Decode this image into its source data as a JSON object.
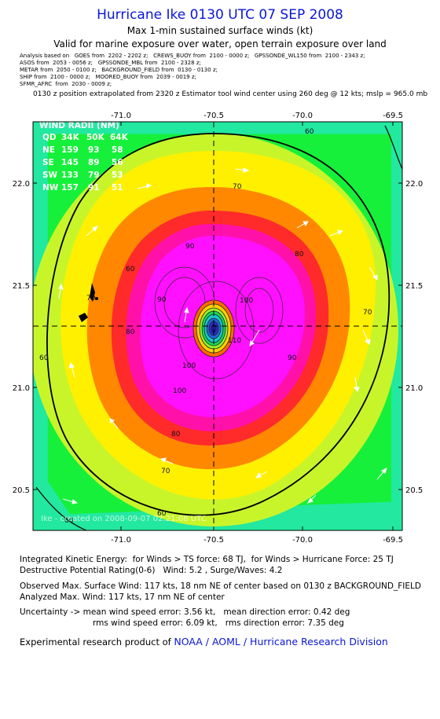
{
  "header": {
    "title": "Hurricane Ike 0130 UTC 07 SEP 2008",
    "subtitle1": "Max 1-min sustained surface winds (kt)",
    "subtitle2": "Valid for marine exposure over water, open terrain exposure over land"
  },
  "analysis_lines": [
    "Analysis based on   GOES from  2202 - 2202 z;   CREWS_BUOY from  2100 - 0000 z;   GPSSONDE_WL150 from  2100 - 2343 z;",
    "ASOS from  2053 - 0056 z;   GPSSONDE_MBL from  2100 - 2328 z;",
    "METAR from  2050 - 0100 z;   BACKGROUND_FIELD from  0130 - 0130 z;",
    "SHIP from  2100 - 0000 z;   MOORED_BUOY from  2039 - 0019 z;",
    "SFMR_AFRC  from  2030 - 0009 z;"
  ],
  "position_note": "0130 z position extrapolated from 2320 z Estimator tool wind center using 260 deg @ 12 kts; mslp = 965.0 mb",
  "map": {
    "x_ticks": [
      "-71.0",
      "-70.5",
      "-70.0",
      "-69.5"
    ],
    "y_ticks": [
      "22.0",
      "21.5",
      "21.0",
      "20.5"
    ],
    "x_range": [
      -71.44,
      -69.46
    ],
    "y_range": [
      20.28,
      22.28
    ],
    "center": {
      "lon": -70.45,
      "lat": 21.3
    },
    "contour_labels": [
      "60",
      "70",
      "80",
      "90",
      "100",
      "110",
      "60",
      "70",
      "80",
      "90",
      "100",
      "60",
      "70",
      "80",
      "90",
      "100",
      "70",
      "60",
      "60"
    ],
    "wind_radii": {
      "title": "WIND RADII (NM)",
      "header": [
        "QD",
        "34K",
        "50K",
        "64K"
      ],
      "rows": [
        [
          "NE",
          "159",
          "93",
          "58"
        ],
        [
          "SE",
          "145",
          "89",
          "56"
        ],
        [
          "SW",
          "133",
          "79",
          "53"
        ],
        [
          "NW",
          "157",
          "91",
          "51"
        ]
      ]
    },
    "created_text": "Ike - created on 2008-09-07 02:21:08 UTC",
    "colors": {
      "lt30": "#22e8a0",
      "30_50": "#16f03a",
      "50_64": "#c8f52a",
      "64_80": "#fff000",
      "80_90": "#ff8800",
      "90_100": "#ff2a2a",
      "100_110": "#ff10a8",
      "gt110": "#ff10ff"
    }
  },
  "info": {
    "line1": "Integrated Kinetic Energy:  for Winds > TS force: 68 TJ,  for Winds > Hurricane Force: 25 TJ",
    "line2": "Destructive Potential Rating(0-6)   Wind: 5.2 , Surge/Waves: 4.2",
    "line3": "Observed Max. Surface Wind: 117 kts, 18 nm NE of center based on 0130 z BACKGROUND_FIELD",
    "line4": "Analyzed Max. Wind: 117 kts, 17 nm NE of center",
    "line5": "Uncertainty -> mean wind speed error: 3.56 kt,   mean direction error: 0.42 deg",
    "line6": "rms wind speed error: 6.09 kt,   rms direction error: 7.35 deg"
  },
  "credit": {
    "prefix": "Experimental research product of",
    "link": "NOAA / AOML / Hurricane Research Division"
  }
}
